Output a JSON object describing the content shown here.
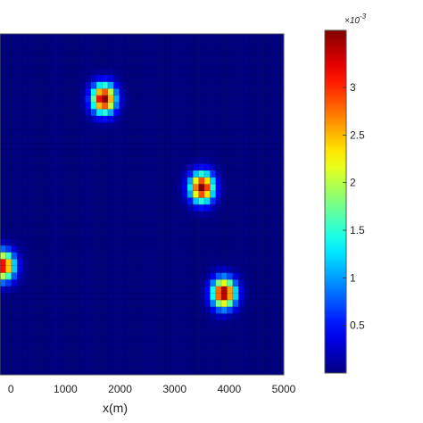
{
  "chart_data": {
    "type": "heatmap",
    "title": "",
    "xlabel": "x(m)",
    "ylabel": "",
    "xlim": [
      -200,
      5000
    ],
    "ylim": [
      0,
      5000
    ],
    "x_ticks": [
      0,
      1000,
      2000,
      3000,
      4000,
      5000
    ],
    "x_tick_labels": [
      "0",
      "1000",
      "2000",
      "3000",
      "4000",
      "5000"
    ],
    "grid_cells_per_axis": 50,
    "background_value": 0.0,
    "sources": [
      {
        "x": 1700,
        "y": 4050,
        "peak": 0.0036,
        "sigma": 150
      },
      {
        "x": 3500,
        "y": 2750,
        "peak": 0.0036,
        "sigma": 150
      },
      {
        "x": 3900,
        "y": 1200,
        "peak": 0.0036,
        "sigma": 150
      },
      {
        "x": -150,
        "y": 1600,
        "peak": 0.0033,
        "sigma": 150
      }
    ],
    "colorbar": {
      "min": 0.0,
      "max": 0.0036,
      "multiplier_label": "×10",
      "multiplier_exponent": "-3",
      "ticks": [
        0.5,
        1,
        1.5,
        2,
        2.5,
        3
      ],
      "tick_labels": [
        "0.5",
        "1",
        "1.5",
        "2",
        "2.5",
        "3"
      ],
      "colormap": "jet"
    }
  }
}
